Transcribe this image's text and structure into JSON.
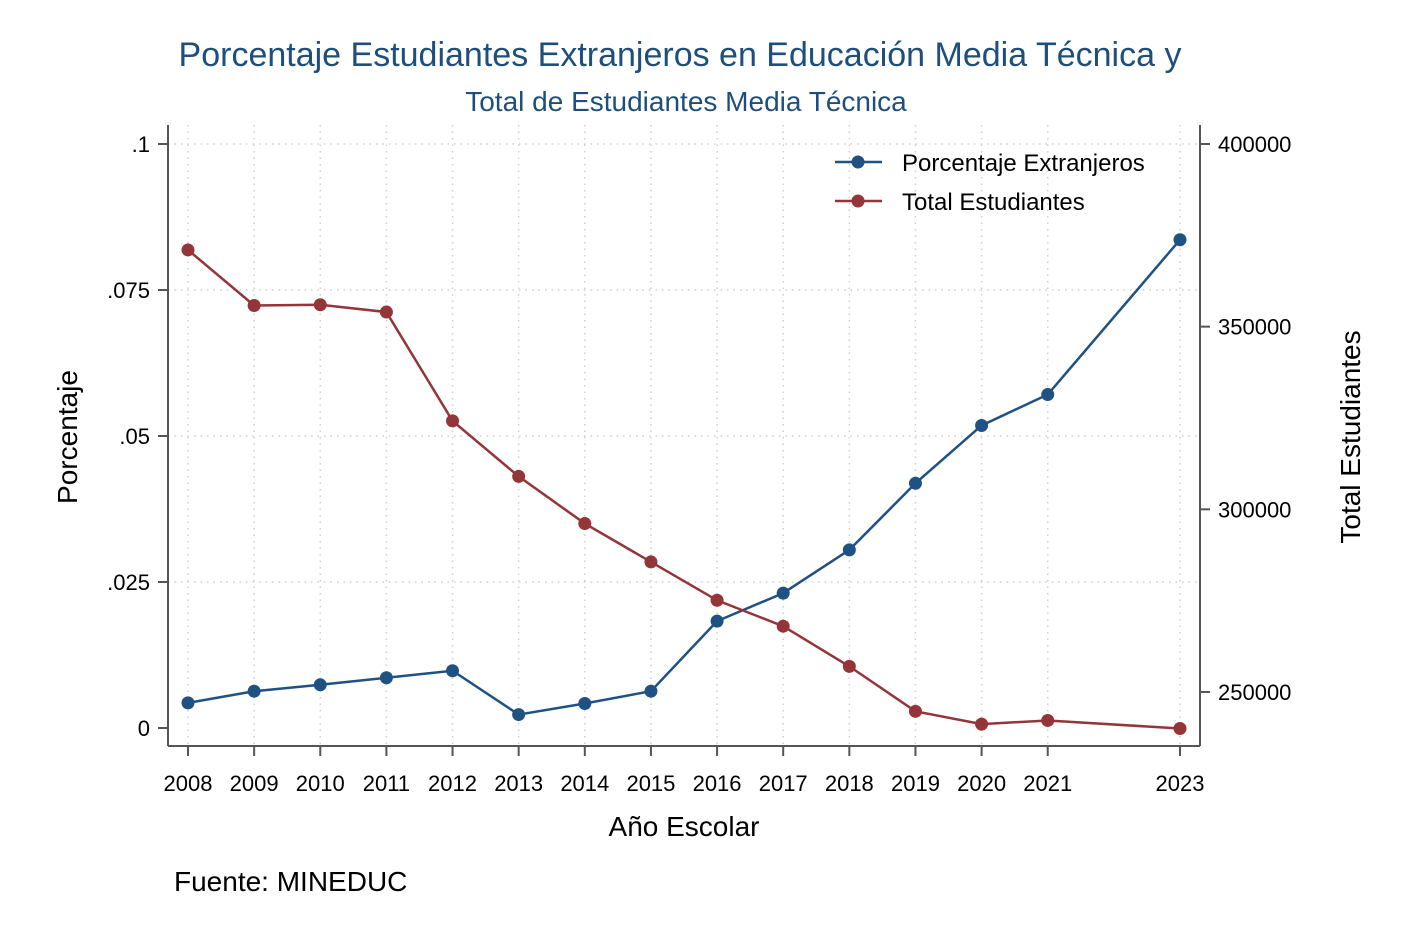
{
  "chart_data": {
    "type": "line",
    "title": "Porcentaje Estudiantes Extranjeros en Educación Media Técnica y",
    "subtitle": "Total de Estudiantes Media Técnica",
    "xlabel": "Año Escolar",
    "ylabel_left": "Porcentaje",
    "ylabel_right": "Total Estudiantes",
    "note": "Fuente: MINEDUC",
    "x": [
      2008,
      2009,
      2010,
      2011,
      2012,
      2013,
      2014,
      2015,
      2016,
      2017,
      2018,
      2019,
      2020,
      2021,
      2023
    ],
    "x_tick_labels": [
      "2008",
      "2009",
      "2010",
      "2011",
      "2012",
      "2013",
      "2014",
      "2015",
      "2016",
      "2017",
      "2018",
      "2019",
      "2020",
      "2021",
      "2023"
    ],
    "ylim_left": [
      0,
      0.1
    ],
    "y_ticks_left": [
      0,
      0.025,
      0.05,
      0.075,
      0.1
    ],
    "y_tick_labels_left": [
      "0",
      ".025",
      ".05",
      ".075",
      ".1"
    ],
    "ylim_right": [
      240000,
      400000
    ],
    "y_ticks_right": [
      250000,
      300000,
      350000,
      400000
    ],
    "y_tick_labels_right": [
      "250000",
      "300000",
      "350000",
      "400000"
    ],
    "grid": true,
    "legend_position": "top-right",
    "series": [
      {
        "name": "Porcentaje Extranjeros",
        "axis": "left",
        "color": "#1f5282",
        "values": [
          0.0043,
          0.0063,
          0.0074,
          0.0086,
          0.0098,
          0.0023,
          0.0042,
          0.0063,
          0.0183,
          0.0231,
          0.0305,
          0.0419,
          0.0518,
          0.0571,
          0.0836
        ]
      },
      {
        "name": "Total Estudiantes",
        "axis": "right",
        "color": "#943539",
        "values": [
          371000,
          355800,
          356000,
          354000,
          324200,
          309000,
          296100,
          285600,
          275100,
          268000,
          257000,
          244700,
          241200,
          242200,
          240000
        ]
      }
    ]
  }
}
